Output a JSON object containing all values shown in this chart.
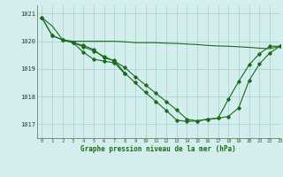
{
  "title": "Graphe pression niveau de la mer (hPa)",
  "bg_color": "#d4eeee",
  "grid_color": "#aad4d4",
  "line_color": "#1a6b1a",
  "xlim": [
    -0.5,
    23
  ],
  "ylim": [
    1016.5,
    1021.3
  ],
  "yticks": [
    1017,
    1018,
    1019,
    1020,
    1021
  ],
  "xticks": [
    0,
    1,
    2,
    3,
    4,
    5,
    6,
    7,
    8,
    9,
    10,
    11,
    12,
    13,
    14,
    15,
    16,
    17,
    18,
    19,
    20,
    21,
    22,
    23
  ],
  "series": [
    {
      "x": [
        0,
        1,
        2,
        3,
        4,
        5,
        6,
        7,
        8,
        9,
        10,
        11,
        12,
        13,
        14,
        15,
        16,
        17,
        18,
        19,
        20,
        21,
        22,
        23
      ],
      "y": [
        1020.85,
        1020.55,
        1020.05,
        1020.0,
        1020.0,
        1020.0,
        1020.0,
        1020.0,
        1019.98,
        1019.95,
        1019.95,
        1019.95,
        1019.93,
        1019.92,
        1019.9,
        1019.88,
        1019.85,
        1019.83,
        1019.82,
        1019.8,
        1019.78,
        1019.75,
        1019.73,
        1019.82
      ],
      "marker": false
    },
    {
      "x": [
        0,
        1,
        2,
        3,
        4,
        5,
        6,
        7,
        8
      ],
      "y": [
        1020.85,
        1020.2,
        1020.05,
        1019.95,
        1019.6,
        1019.35,
        1019.28,
        1019.22,
        1018.82
      ],
      "marker": true
    },
    {
      "x": [
        0,
        1,
        2,
        3,
        4,
        5,
        6,
        7,
        8,
        9,
        10,
        11,
        12,
        13,
        14,
        15,
        16,
        17,
        18,
        19,
        20,
        21,
        22,
        23
      ],
      "y": [
        1020.85,
        1020.2,
        1020.05,
        1019.95,
        1019.85,
        1019.7,
        1019.4,
        1019.3,
        1018.85,
        1018.5,
        1018.15,
        1017.82,
        1017.5,
        1017.15,
        1017.1,
        1017.12,
        1017.18,
        1017.22,
        1017.9,
        1018.55,
        1019.15,
        1019.55,
        1019.82,
        1019.82
      ],
      "marker": true
    },
    {
      "x": [
        2,
        3,
        4,
        5,
        6,
        7,
        8,
        9,
        10,
        11,
        12,
        13,
        14,
        15,
        16,
        17,
        18,
        19,
        20,
        21,
        22,
        23
      ],
      "y": [
        1020.05,
        1019.95,
        1019.8,
        1019.65,
        1019.45,
        1019.28,
        1019.05,
        1018.72,
        1018.42,
        1018.12,
        1017.82,
        1017.52,
        1017.18,
        1017.12,
        1017.18,
        1017.22,
        1017.28,
        1017.6,
        1018.58,
        1019.18,
        1019.58,
        1019.82
      ],
      "marker": true
    }
  ]
}
